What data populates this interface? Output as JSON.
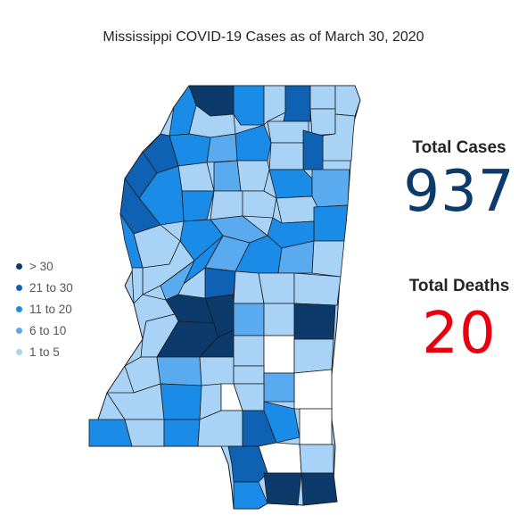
{
  "title": "Mississippi COVID-19 Cases as of March 30, 2020",
  "legend": [
    {
      "label": "> 30",
      "color": "#0b3a6b"
    },
    {
      "label": "21 to 30",
      "color": "#0f62b3"
    },
    {
      "label": "11 to 20",
      "color": "#1a8ce8"
    },
    {
      "label": "6 to 10",
      "color": "#5aaaf0"
    },
    {
      "label": "1 to 5",
      "color": "#a8d3f7"
    }
  ],
  "no_cases_color": "#ffffff",
  "kpis": {
    "cases": {
      "label": "Total Cases",
      "value": "937",
      "color": "#0b3a6b"
    },
    "deaths": {
      "label": "Total Deaths",
      "value": "20",
      "color": "#e8000f"
    }
  }
}
